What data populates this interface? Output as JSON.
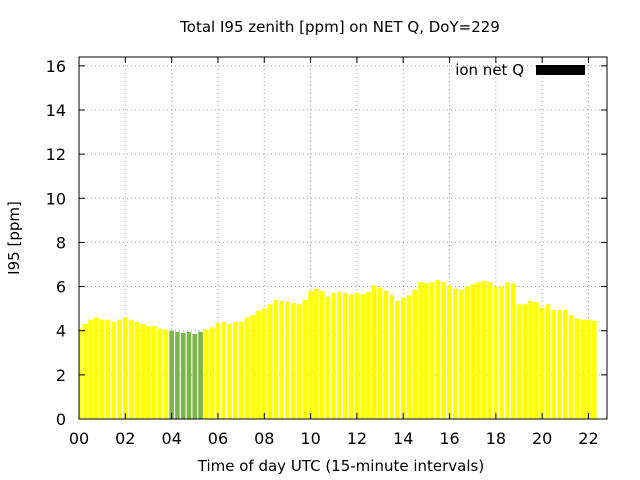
{
  "chart_data": {
    "type": "bar",
    "title": "Total I95 zenith [ppm] on NET Q, DoY=229",
    "xlabel": "Time of day UTC (15-minute intervals)",
    "ylabel": "I95 [ppm]",
    "ylim": [
      0,
      16.4
    ],
    "yticks": [
      0,
      2,
      4,
      6,
      8,
      10,
      12,
      14,
      16
    ],
    "ytick_labels": [
      "0",
      "2",
      "4",
      "6",
      "8",
      "10",
      "12",
      "14",
      "16"
    ],
    "xlim": [
      0,
      22.8
    ],
    "xticks": [
      0,
      2,
      4,
      6,
      8,
      10,
      12,
      14,
      16,
      18,
      20,
      22
    ],
    "xtick_labels": [
      "00",
      "02",
      "04",
      "06",
      "08",
      "10",
      "12",
      "14",
      "16",
      "18",
      "20",
      "22"
    ],
    "grid": true,
    "legend": {
      "label": "ion net Q",
      "color": "#000000",
      "position": "top-right"
    },
    "bar_width_hours": 0.2,
    "colors": {
      "default": "#ffff00",
      "highlight": "#7ab648"
    },
    "highlight_range_hours": [
      3.875,
      5.375
    ],
    "interval_hours": 0.25,
    "values": [
      4.1,
      4.3,
      4.5,
      4.6,
      4.5,
      4.5,
      4.4,
      4.5,
      4.6,
      4.5,
      4.4,
      4.3,
      4.2,
      4.2,
      4.1,
      4.05,
      4.0,
      3.95,
      3.9,
      3.95,
      3.85,
      3.95,
      4.05,
      4.15,
      4.35,
      4.4,
      4.3,
      4.4,
      4.4,
      4.6,
      4.7,
      4.9,
      5.0,
      5.2,
      5.4,
      5.35,
      5.3,
      5.25,
      5.2,
      5.4,
      5.8,
      5.9,
      5.8,
      5.55,
      5.7,
      5.75,
      5.7,
      5.65,
      5.7,
      5.65,
      5.75,
      6.05,
      5.95,
      5.8,
      5.6,
      5.35,
      5.5,
      5.6,
      5.85,
      6.2,
      6.15,
      6.2,
      6.3,
      6.2,
      6.05,
      5.9,
      5.85,
      6.0,
      6.1,
      6.2,
      6.25,
      6.2,
      6.0,
      6.0,
      6.2,
      6.15,
      5.2,
      5.2,
      5.35,
      5.3,
      5.05,
      5.2,
      4.95,
      4.95,
      4.95,
      4.7,
      4.55,
      4.5,
      4.5,
      4.45
    ]
  }
}
